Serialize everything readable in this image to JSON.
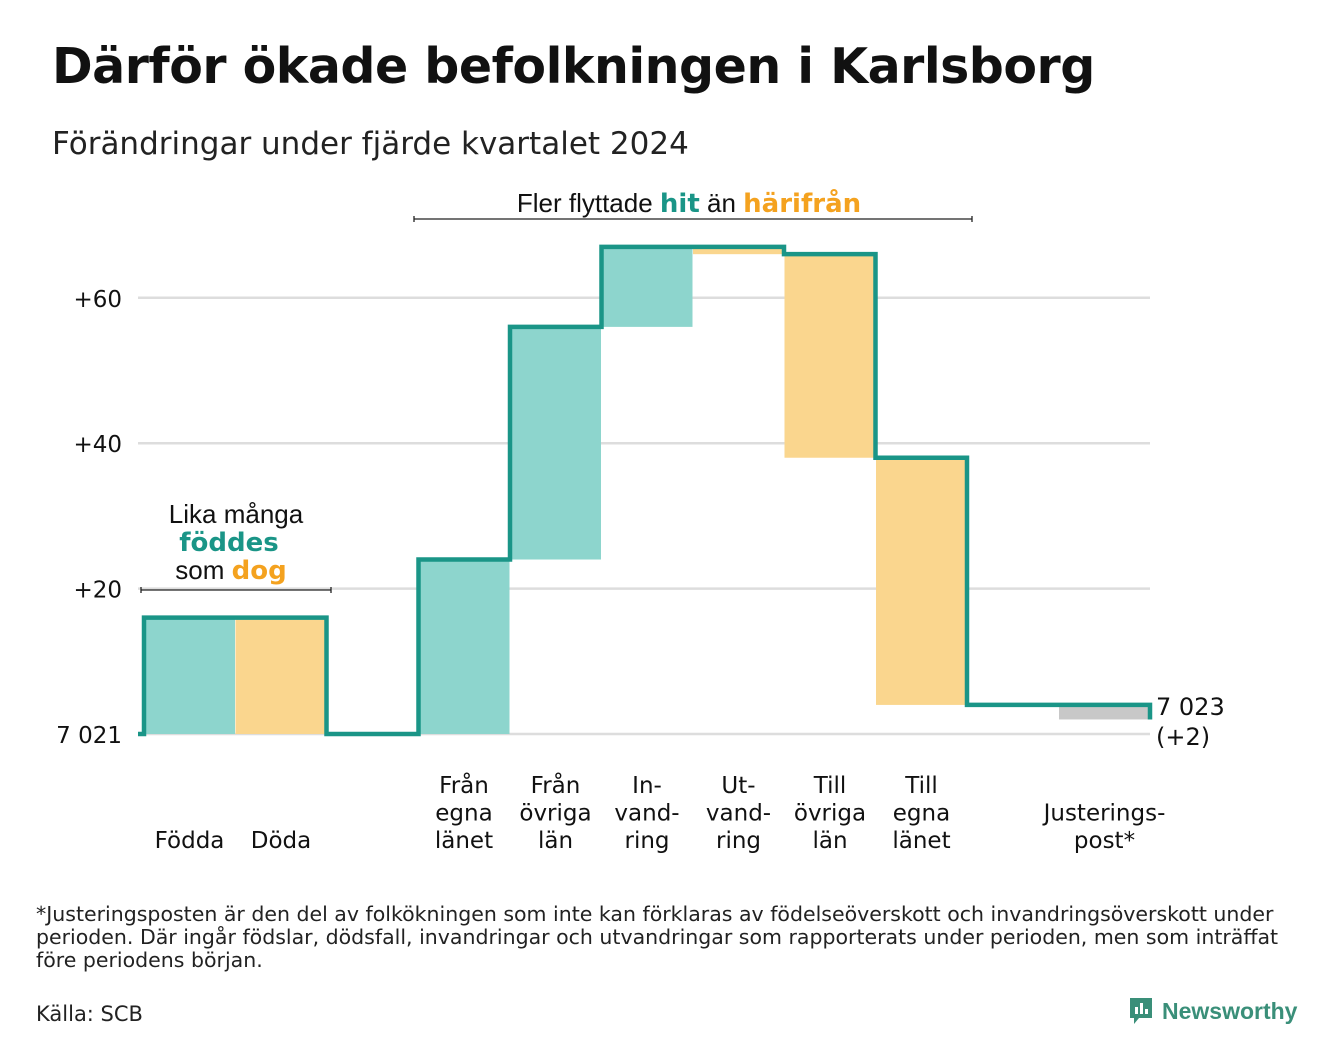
{
  "title": "Därför ökade befolkningen i Karlsborg",
  "subtitle": "Förändringar under fjärde kvartalet 2024",
  "colors": {
    "teal": "#1a9587",
    "teal_fill": "#8dd5cd",
    "orange": "#f4a21f",
    "orange_fill": "#fad68e",
    "grey_fill": "#c8c8c8",
    "grid": "#dddddd"
  },
  "chart_data": {
    "type": "waterfall",
    "base": 7021,
    "categories": [
      {
        "lines": [
          "Födda"
        ],
        "delta": 16,
        "kind": "in"
      },
      {
        "lines": [
          "Döda"
        ],
        "delta": -16,
        "kind": "out"
      },
      {
        "lines": [
          "Från",
          "egna",
          "länet"
        ],
        "delta": 24,
        "kind": "in"
      },
      {
        "lines": [
          "Från",
          "övriga",
          "län"
        ],
        "delta": 32,
        "kind": "in"
      },
      {
        "lines": [
          "In-",
          "vand-",
          "ring"
        ],
        "delta": 11,
        "kind": "in"
      },
      {
        "lines": [
          "Ut-",
          "vand-",
          "ring"
        ],
        "delta": -1,
        "kind": "out"
      },
      {
        "lines": [
          "Till",
          "övriga",
          "län"
        ],
        "delta": -28,
        "kind": "out"
      },
      {
        "lines": [
          "Till",
          "egna",
          "länet"
        ],
        "delta": -34,
        "kind": "out"
      },
      {
        "lines": [
          "Justerings-",
          "post*"
        ],
        "delta": -2,
        "kind": "adjust"
      }
    ],
    "ytick_labels": [
      "7 021",
      "+20",
      "+40",
      "+60"
    ],
    "yticks": [
      0,
      20,
      40,
      60
    ],
    "ylim": [
      0,
      70
    ],
    "end_label": "7 023",
    "end_change": "(+2)",
    "annotations": {
      "births": {
        "line1": "Lika många",
        "highlight_in": "föddes",
        "pre_out": "som",
        "highlight_out": "dog"
      },
      "migration": {
        "pre": "Fler flyttade",
        "highlight_in": "hit",
        "mid": "än",
        "highlight_out": "härifrån"
      }
    }
  },
  "footnote": "*Justeringsposten är den del av folkökningen som inte kan förklaras av födelseöverskott och invandringsöverskott under perioden. Där ingår födslar, dödsfall, invandringar och utvandringar som rapporterats under perioden, men som inträffat före periodens början.",
  "source": "Källa: SCB",
  "brand": "Newsworthy",
  "brand_icon": "newsworthy-logo-icon"
}
